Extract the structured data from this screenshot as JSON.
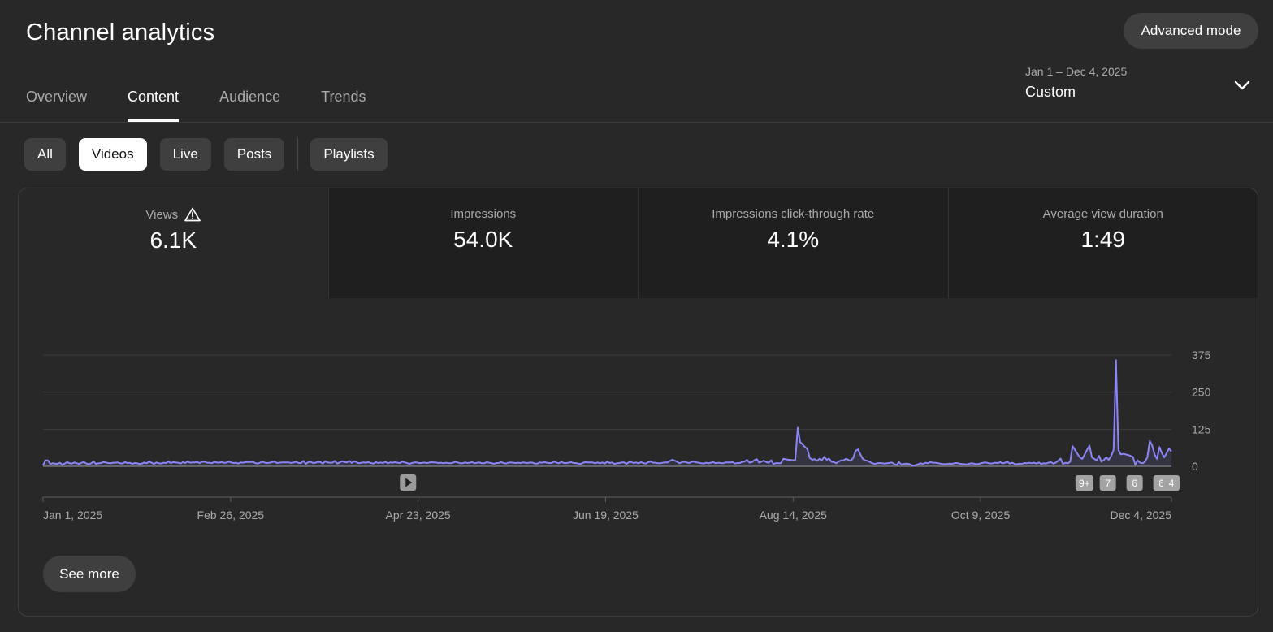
{
  "header": {
    "title": "Channel analytics",
    "advanced_mode_label": "Advanced mode"
  },
  "tabs": [
    {
      "label": "Overview",
      "active": false
    },
    {
      "label": "Content",
      "active": true
    },
    {
      "label": "Audience",
      "active": false
    },
    {
      "label": "Trends",
      "active": false
    }
  ],
  "date_range": {
    "range": "Jan 1 – Dec 4, 2025",
    "preset": "Custom"
  },
  "filters": {
    "all": "All",
    "videos": "Videos",
    "live": "Live",
    "posts": "Posts",
    "playlists": "Playlists",
    "selected": "Videos"
  },
  "metrics": [
    {
      "label": "Views",
      "value": "6.1K",
      "warning": true,
      "active": true
    },
    {
      "label": "Impressions",
      "value": "54.0K",
      "active": false
    },
    {
      "label": "Impressions click-through rate",
      "value": "4.1%",
      "active": false
    },
    {
      "label": "Average view duration",
      "value": "1:49",
      "active": false
    }
  ],
  "see_more_label": "See more",
  "colors": {
    "line": "#8b85f5",
    "background": "#282828"
  },
  "chart_data": {
    "type": "line",
    "y_ticks": [
      0,
      125,
      250,
      375
    ],
    "ylim": [
      0,
      375
    ],
    "x_tick_labels": [
      "Jan 1, 2025",
      "Feb 26, 2025",
      "Apr 23, 2025",
      "Jun 19, 2025",
      "Aug 14, 2025",
      "Oct 9, 2025",
      "Dec 4, 2025"
    ],
    "x_start": "2025-01-01",
    "x_end": "2025-12-04",
    "series": [
      {
        "values": [
          3,
          20,
          20,
          8,
          10,
          9,
          8,
          12,
          5,
          9,
          14,
          10,
          9,
          13,
          10,
          8,
          12,
          14,
          9,
          7,
          10,
          16,
          8,
          10,
          11,
          14,
          13,
          11,
          10,
          12,
          12,
          13,
          10,
          9,
          14,
          11,
          12,
          8,
          11,
          10,
          8,
          9,
          13,
          10,
          16,
          12,
          8,
          13,
          10,
          9,
          12,
          11,
          16,
          11,
          14,
          13,
          12,
          9,
          14,
          11,
          17,
          12,
          13,
          13,
          14,
          11,
          15,
          15,
          12,
          12,
          10,
          15,
          13,
          12,
          14,
          12,
          12,
          16,
          13,
          11,
          12,
          9,
          13,
          12,
          14,
          14,
          14,
          15,
          11,
          9,
          12,
          15,
          12,
          11,
          12,
          14,
          16,
          11,
          12,
          13,
          13,
          13,
          13,
          11,
          13,
          15,
          11,
          11,
          18,
          8,
          14,
          15,
          11,
          12,
          15,
          14,
          9,
          17,
          13,
          12,
          12,
          18,
          9,
          13,
          17,
          14,
          13,
          18,
          11,
          17,
          14,
          10,
          12,
          13,
          12,
          14,
          11,
          9,
          14,
          11,
          13,
          11,
          15,
          10,
          13,
          12,
          14,
          12,
          11,
          16,
          13,
          11,
          8,
          11,
          13,
          13,
          11,
          11,
          13,
          11,
          12,
          14,
          13,
          13,
          11,
          12,
          10,
          12,
          11,
          10,
          12,
          15,
          13,
          10,
          10,
          13,
          11,
          12,
          14,
          10,
          12,
          13,
          10,
          10,
          14,
          12,
          11,
          8,
          11,
          11,
          14,
          11,
          9,
          12,
          13,
          12,
          11,
          12,
          11,
          13,
          12,
          11,
          13,
          12,
          9,
          9,
          13,
          12,
          14,
          12,
          11,
          11,
          16,
          12,
          10,
          15,
          11,
          11,
          12,
          14,
          11,
          11,
          9,
          8,
          12,
          14,
          13,
          13,
          13,
          10,
          13,
          10,
          13,
          9,
          16,
          11,
          13,
          8,
          10,
          11,
          13,
          13,
          8,
          14,
          14,
          11,
          13,
          10,
          14,
          11,
          9,
          14,
          16,
          12,
          12,
          10,
          10,
          12,
          13,
          13,
          18,
          22,
          19,
          15,
          10,
          14,
          15,
          13,
          11,
          15,
          16,
          13,
          12,
          10,
          9,
          12,
          10,
          12,
          14,
          10,
          12,
          11,
          10,
          13,
          13,
          13,
          14,
          9,
          11,
          11,
          15,
          16,
          22,
          12,
          14,
          20,
          24,
          12,
          16,
          19,
          14,
          12,
          20,
          7,
          11,
          10,
          10,
          25,
          24,
          22,
          22,
          20,
          22,
          130,
          82,
          74,
          65,
          58,
          28,
          22,
          24,
          18,
          25,
          20,
          32,
          22,
          26,
          15,
          14,
          10,
          16,
          20,
          20,
          25,
          22,
          18,
          28,
          52,
          57,
          40,
          25,
          20,
          18,
          14,
          10,
          8,
          10,
          11,
          10,
          9,
          10,
          11,
          13,
          8,
          4,
          14,
          6,
          8,
          9,
          8,
          5,
          1,
          4,
          7,
          10,
          8,
          12,
          10,
          14,
          12,
          12,
          11,
          9,
          8,
          7,
          8,
          9,
          8,
          10,
          11,
          9,
          8,
          7,
          6,
          8,
          10,
          9,
          7,
          8,
          10,
          12,
          13,
          11,
          9,
          10,
          12,
          11,
          14,
          10,
          12,
          15,
          9,
          12,
          8,
          7,
          9,
          8,
          11,
          10,
          12,
          10,
          12,
          9,
          13,
          8,
          10,
          9,
          12,
          14,
          9,
          12,
          18,
          26,
          8,
          12,
          10,
          15,
          68,
          55,
          42,
          30,
          25,
          40,
          55,
          70,
          30,
          25,
          20,
          35,
          15,
          22,
          30,
          22,
          35,
          55,
          358,
          55,
          40,
          42,
          40,
          38,
          35,
          32,
          5,
          20,
          12,
          10,
          15,
          30,
          85,
          70,
          40,
          25,
          65,
          45,
          30,
          45,
          60,
          50
        ]
      }
    ],
    "event_markers": [
      {
        "label": "",
        "kind": "play",
        "date": "2025-04-20"
      },
      {
        "label": "9+",
        "date": "2025-11-08"
      },
      {
        "label": "7",
        "date": "2025-11-15"
      },
      {
        "label": "6",
        "date": "2025-11-23"
      },
      {
        "label": "6",
        "date": "2025-12-01"
      },
      {
        "label": "4",
        "date": "2025-12-04"
      }
    ]
  }
}
